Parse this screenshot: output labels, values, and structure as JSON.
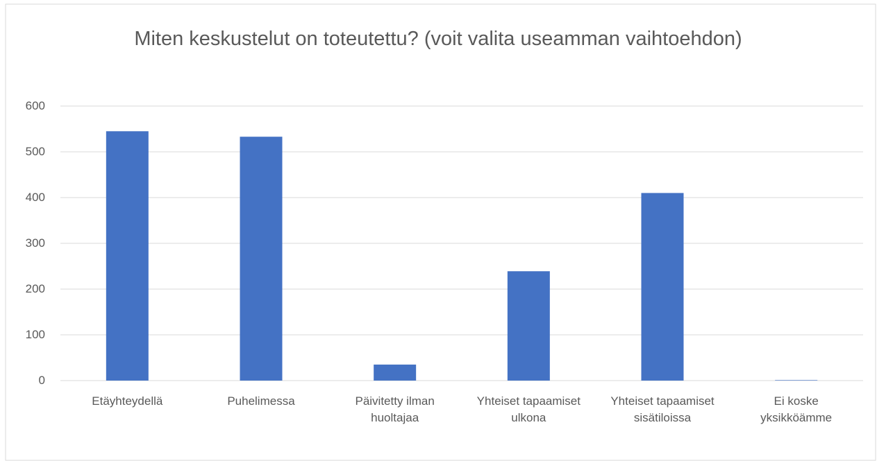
{
  "chart_data": {
    "type": "bar",
    "title": "Miten keskustelut on toteutettu? (voit valita useamman vaihtoehdon)",
    "categories": [
      "Etäyhteydellä",
      "Puhelimessa",
      "Päivitetty ilman huoltajaa",
      "Yhteiset tapaamiset ulkona",
      "Yhteiset tapaamiset sisätiloissa",
      "Ei koske yksikköämme"
    ],
    "values": [
      545,
      533,
      35,
      239,
      410,
      1
    ],
    "color": "#4472c4",
    "ylim": [
      0,
      600
    ],
    "yticks": [
      0,
      100,
      200,
      300,
      400,
      500,
      600
    ],
    "grid": true
  }
}
